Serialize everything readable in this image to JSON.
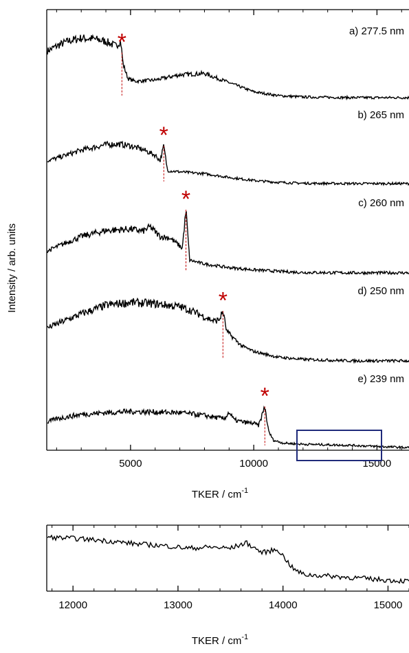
{
  "colors": {
    "trace": "#000000",
    "peak_marker": "#c00000",
    "zoom_box": "#1f2a7a",
    "axis": "#000000"
  },
  "chart_data": [
    {
      "type": "line",
      "title": "",
      "xlabel": "TKER / cm",
      "xlabel_superscript": "-1",
      "ylabel": "Intensity / arb. units",
      "xlim": [
        1600,
        16300
      ],
      "xticks": [
        5000,
        10000,
        15000
      ],
      "xtick_labels": [
        "5000",
        "10000",
        "15000"
      ],
      "y_ticks_shown": false,
      "grid": false,
      "stacked_offset_traces": true,
      "series": [
        {
          "name": "a) 277.5 nm",
          "peak_marker": "*",
          "peak_x": 4650,
          "x": [
            1600,
            2000,
            2500,
            3000,
            3500,
            4000,
            4400,
            4600,
            4700,
            4900,
            5200,
            6000,
            7000,
            8000,
            9000,
            10000,
            11000,
            12000,
            14000,
            16300
          ],
          "y": [
            0.72,
            0.8,
            0.88,
            0.92,
            0.91,
            0.87,
            0.8,
            0.88,
            0.52,
            0.3,
            0.26,
            0.28,
            0.36,
            0.38,
            0.24,
            0.1,
            0.04,
            0.02,
            0.01,
            0.01
          ]
        },
        {
          "name": "b) 265 nm",
          "peak_marker": "*",
          "peak_x": 6350,
          "x": [
            1600,
            2000,
            3000,
            4000,
            4500,
            5000,
            5500,
            6000,
            6200,
            6350,
            6500,
            7000,
            8000,
            9000,
            10000,
            11000,
            12000,
            14000,
            16300
          ],
          "y": [
            0.38,
            0.42,
            0.55,
            0.64,
            0.65,
            0.62,
            0.56,
            0.47,
            0.38,
            0.62,
            0.22,
            0.2,
            0.17,
            0.11,
            0.06,
            0.03,
            0.015,
            0.01,
            0.01
          ]
        },
        {
          "name": "c) 260 nm",
          "peak_marker": "*",
          "peak_x": 7250,
          "x": [
            1600,
            2000,
            3000,
            4000,
            5000,
            5500,
            5800,
            6200,
            6600,
            6900,
            7100,
            7250,
            7400,
            8000,
            9000,
            10000,
            11000,
            12000,
            14000,
            16300
          ],
          "y": [
            0.3,
            0.36,
            0.5,
            0.58,
            0.6,
            0.57,
            0.63,
            0.5,
            0.48,
            0.4,
            0.34,
            0.86,
            0.18,
            0.13,
            0.08,
            0.05,
            0.03,
            0.015,
            0.01,
            0.01
          ]
        },
        {
          "name": "d) 250 nm",
          "peak_marker": "*",
          "peak_x": 8750,
          "x": [
            1600,
            2000,
            3000,
            4000,
            5000,
            6000,
            7000,
            7500,
            8000,
            8400,
            8600,
            8750,
            8900,
            9500,
            10000,
            11000,
            12000,
            14000,
            16300
          ],
          "y": [
            0.46,
            0.52,
            0.66,
            0.78,
            0.82,
            0.8,
            0.76,
            0.7,
            0.62,
            0.56,
            0.58,
            0.7,
            0.42,
            0.22,
            0.14,
            0.06,
            0.03,
            0.01,
            0.01
          ]
        },
        {
          "name": "e) 239 nm",
          "peak_marker": "*",
          "peak_x": 10450,
          "x": [
            1600,
            2000,
            3000,
            4000,
            5000,
            6000,
            7000,
            8000,
            8800,
            9000,
            9200,
            9600,
            10000,
            10200,
            10450,
            10600,
            10800,
            11200,
            12000,
            13000,
            14000,
            15000,
            16300
          ],
          "y": [
            0.46,
            0.52,
            0.6,
            0.63,
            0.65,
            0.64,
            0.63,
            0.58,
            0.52,
            0.64,
            0.5,
            0.46,
            0.44,
            0.4,
            0.74,
            0.3,
            0.14,
            0.09,
            0.07,
            0.06,
            0.05,
            0.03,
            0.01
          ]
        }
      ],
      "annotation": "zoom box from 11800 to 15100 cm-1 on trace e)"
    },
    {
      "type": "line",
      "title": "",
      "xlabel": "TKER / cm",
      "xlabel_superscript": "-1",
      "ylabel": "",
      "xlim": [
        11750,
        15200
      ],
      "xticks": [
        12000,
        13000,
        14000,
        15000
      ],
      "xtick_labels": [
        "12000",
        "13000",
        "14000",
        "15000"
      ],
      "y_ticks_shown": false,
      "grid": false,
      "series": [
        {
          "name": "",
          "x": [
            11750,
            12000,
            12300,
            12600,
            12900,
            13100,
            13300,
            13500,
            13650,
            13800,
            13950,
            14100,
            14200,
            14400,
            14700,
            15000,
            15200
          ],
          "y": [
            0.88,
            0.86,
            0.82,
            0.76,
            0.72,
            0.68,
            0.7,
            0.68,
            0.78,
            0.6,
            0.66,
            0.3,
            0.2,
            0.18,
            0.14,
            0.1,
            0.08
          ]
        }
      ]
    }
  ]
}
